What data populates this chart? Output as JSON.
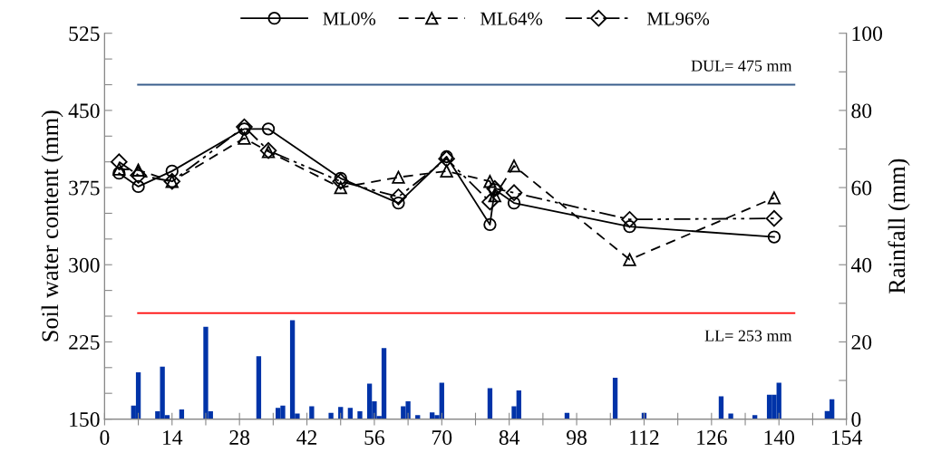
{
  "chart_data": {
    "type": "line",
    "ylabel": "Soil water content (mm)",
    "y2label": "Rainfall (mm)",
    "xlim": [
      0,
      154
    ],
    "xticks": [
      0,
      {
        "value": 7,
        "label": null
      },
      14,
      {
        "value": 21,
        "label": null
      },
      28,
      {
        "value": 35,
        "label": null
      },
      42,
      {
        "value": 49,
        "label": null
      },
      56,
      {
        "value": 63,
        "label": null
      },
      70,
      {
        "value": 77,
        "label": null
      },
      84,
      {
        "value": 91,
        "label": null
      },
      98,
      {
        "value": 105,
        "label": null
      },
      112,
      {
        "value": 119,
        "label": null
      },
      126,
      {
        "value": 133,
        "label": null
      },
      140,
      {
        "value": 147,
        "label": null
      },
      154
    ],
    "ylim": [
      150,
      525
    ],
    "yticks": [
      150,
      {
        "value": 175,
        "label": null
      },
      {
        "value": 200,
        "label": null
      },
      225,
      {
        "value": 250,
        "label": null
      },
      {
        "value": 275,
        "label": null
      },
      300,
      {
        "value": 325,
        "label": null
      },
      {
        "value": 350,
        "label": null
      },
      375,
      {
        "value": 400,
        "label": null
      },
      {
        "value": 425,
        "label": null
      },
      450,
      {
        "value": 475,
        "label": null
      },
      {
        "value": 500,
        "label": null
      },
      525
    ],
    "y2lim": [
      0,
      100
    ],
    "y2ticks": [
      0,
      {
        "value": 10,
        "label": null
      },
      20,
      {
        "value": 30,
        "label": null
      },
      40,
      {
        "value": 50,
        "label": null
      },
      60,
      {
        "value": 70,
        "label": null
      },
      80,
      {
        "value": 90,
        "label": null
      },
      100
    ],
    "grid": false,
    "legend": "top",
    "series": [
      {
        "name": "ML0%",
        "color": "#000000",
        "marker": "circle",
        "line_style": "solid",
        "x": [
          3,
          7,
          14,
          29,
          34,
          49,
          61,
          71,
          80,
          81,
          85,
          109,
          139
        ],
        "values": [
          389,
          376,
          391,
          432,
          432,
          384,
          360,
          405,
          339,
          373,
          360,
          337,
          327
        ]
      },
      {
        "name": "ML64%",
        "color": "#000000",
        "marker": "triangle",
        "line_style": "dashed",
        "x": [
          3,
          7,
          14,
          29,
          34,
          49,
          61,
          71,
          80,
          81,
          85,
          109,
          139
        ],
        "values": [
          393,
          392,
          381,
          423,
          410,
          375,
          385,
          391,
          381,
          367,
          396,
          305,
          365
        ]
      },
      {
        "name": "ML96%",
        "color": "#000000",
        "marker": "diamond",
        "line_style": "dashdotdot",
        "x": [
          3,
          7,
          14,
          29,
          34,
          49,
          61,
          71,
          80,
          81,
          85,
          109,
          139
        ],
        "values": [
          400,
          387,
          381,
          434,
          411,
          381,
          366,
          403,
          361,
          374,
          370,
          344,
          345
        ]
      },
      {
        "type": "bar",
        "axis": "y2",
        "color": "#0033a8",
        "x": [
          6,
          7,
          11,
          12,
          13,
          16,
          21,
          22,
          32,
          36,
          37,
          39,
          40,
          43,
          47,
          49,
          51,
          53,
          55,
          56,
          57,
          58,
          62,
          63,
          65,
          68,
          69,
          70,
          80,
          85,
          86,
          96,
          106,
          112,
          128,
          130,
          135,
          138,
          139,
          140,
          150,
          151
        ],
        "values": [
          3.5,
          12.1,
          2.0,
          13.6,
          1.0,
          2.5,
          23.9,
          2.0,
          16.3,
          2.9,
          3.5,
          25.6,
          1.4,
          3.3,
          1.6,
          3.1,
          2.9,
          2.0,
          9.2,
          4.6,
          0.8,
          18.4,
          3.3,
          4.6,
          1.0,
          1.7,
          1.0,
          9.4,
          8.0,
          3.3,
          7.4,
          1.6,
          10.7,
          1.6,
          5.9,
          1.4,
          1.0,
          6.3,
          6.3,
          9.4,
          2.1,
          5.1
        ]
      }
    ],
    "ref_lines": [
      {
        "axis": "y",
        "value": 475,
        "label": "DUL= 475 mm",
        "color": "#3a5f8c"
      },
      {
        "axis": "y",
        "value": 253,
        "label": "LL= 253 mm",
        "color": "#ff0000"
      }
    ]
  }
}
